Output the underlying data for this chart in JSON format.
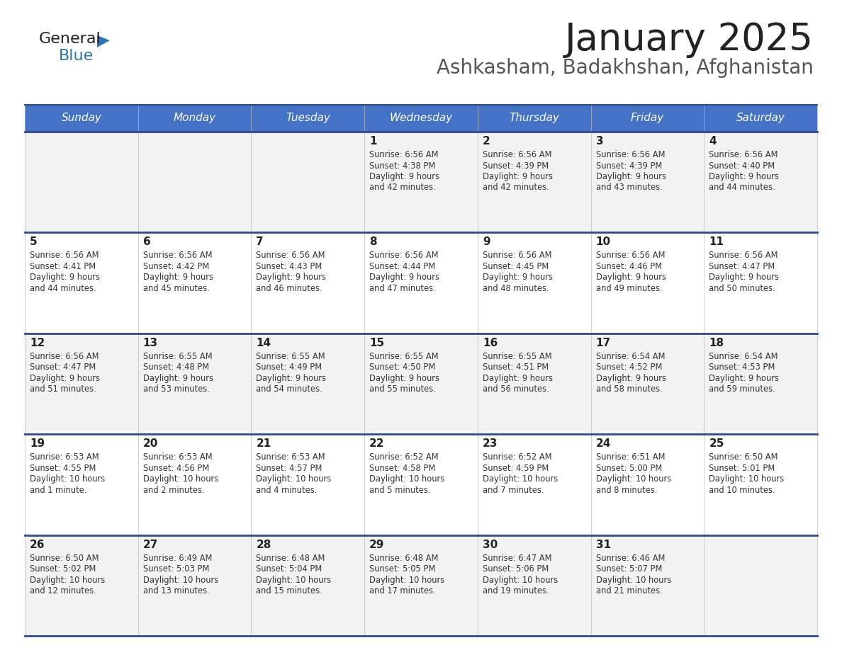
{
  "title": "January 2025",
  "subtitle": "Ashkasham, Badakhshan, Afghanistan",
  "header_bg": "#4472C4",
  "header_text_color": "#FFFFFF",
  "cell_bg_light": "#F2F2F2",
  "cell_bg_white": "#FFFFFF",
  "divider_color": "#2E4A8B",
  "days_of_week": [
    "Sunday",
    "Monday",
    "Tuesday",
    "Wednesday",
    "Thursday",
    "Friday",
    "Saturday"
  ],
  "calendar": [
    [
      {
        "day": "",
        "sunrise": "",
        "sunset": "",
        "daylight": ""
      },
      {
        "day": "",
        "sunrise": "",
        "sunset": "",
        "daylight": ""
      },
      {
        "day": "",
        "sunrise": "",
        "sunset": "",
        "daylight": ""
      },
      {
        "day": "1",
        "sunrise": "6:56 AM",
        "sunset": "4:38 PM",
        "daylight": "9 hours and 42 minutes."
      },
      {
        "day": "2",
        "sunrise": "6:56 AM",
        "sunset": "4:39 PM",
        "daylight": "9 hours and 42 minutes."
      },
      {
        "day": "3",
        "sunrise": "6:56 AM",
        "sunset": "4:39 PM",
        "daylight": "9 hours and 43 minutes."
      },
      {
        "day": "4",
        "sunrise": "6:56 AM",
        "sunset": "4:40 PM",
        "daylight": "9 hours and 44 minutes."
      }
    ],
    [
      {
        "day": "5",
        "sunrise": "6:56 AM",
        "sunset": "4:41 PM",
        "daylight": "9 hours and 44 minutes."
      },
      {
        "day": "6",
        "sunrise": "6:56 AM",
        "sunset": "4:42 PM",
        "daylight": "9 hours and 45 minutes."
      },
      {
        "day": "7",
        "sunrise": "6:56 AM",
        "sunset": "4:43 PM",
        "daylight": "9 hours and 46 minutes."
      },
      {
        "day": "8",
        "sunrise": "6:56 AM",
        "sunset": "4:44 PM",
        "daylight": "9 hours and 47 minutes."
      },
      {
        "day": "9",
        "sunrise": "6:56 AM",
        "sunset": "4:45 PM",
        "daylight": "9 hours and 48 minutes."
      },
      {
        "day": "10",
        "sunrise": "6:56 AM",
        "sunset": "4:46 PM",
        "daylight": "9 hours and 49 minutes."
      },
      {
        "day": "11",
        "sunrise": "6:56 AM",
        "sunset": "4:47 PM",
        "daylight": "9 hours and 50 minutes."
      }
    ],
    [
      {
        "day": "12",
        "sunrise": "6:56 AM",
        "sunset": "4:47 PM",
        "daylight": "9 hours and 51 minutes."
      },
      {
        "day": "13",
        "sunrise": "6:55 AM",
        "sunset": "4:48 PM",
        "daylight": "9 hours and 53 minutes."
      },
      {
        "day": "14",
        "sunrise": "6:55 AM",
        "sunset": "4:49 PM",
        "daylight": "9 hours and 54 minutes."
      },
      {
        "day": "15",
        "sunrise": "6:55 AM",
        "sunset": "4:50 PM",
        "daylight": "9 hours and 55 minutes."
      },
      {
        "day": "16",
        "sunrise": "6:55 AM",
        "sunset": "4:51 PM",
        "daylight": "9 hours and 56 minutes."
      },
      {
        "day": "17",
        "sunrise": "6:54 AM",
        "sunset": "4:52 PM",
        "daylight": "9 hours and 58 minutes."
      },
      {
        "day": "18",
        "sunrise": "6:54 AM",
        "sunset": "4:53 PM",
        "daylight": "9 hours and 59 minutes."
      }
    ],
    [
      {
        "day": "19",
        "sunrise": "6:53 AM",
        "sunset": "4:55 PM",
        "daylight": "10 hours and 1 minute."
      },
      {
        "day": "20",
        "sunrise": "6:53 AM",
        "sunset": "4:56 PM",
        "daylight": "10 hours and 2 minutes."
      },
      {
        "day": "21",
        "sunrise": "6:53 AM",
        "sunset": "4:57 PM",
        "daylight": "10 hours and 4 minutes."
      },
      {
        "day": "22",
        "sunrise": "6:52 AM",
        "sunset": "4:58 PM",
        "daylight": "10 hours and 5 minutes."
      },
      {
        "day": "23",
        "sunrise": "6:52 AM",
        "sunset": "4:59 PM",
        "daylight": "10 hours and 7 minutes."
      },
      {
        "day": "24",
        "sunrise": "6:51 AM",
        "sunset": "5:00 PM",
        "daylight": "10 hours and 8 minutes."
      },
      {
        "day": "25",
        "sunrise": "6:50 AM",
        "sunset": "5:01 PM",
        "daylight": "10 hours and 10 minutes."
      }
    ],
    [
      {
        "day": "26",
        "sunrise": "6:50 AM",
        "sunset": "5:02 PM",
        "daylight": "10 hours and 12 minutes."
      },
      {
        "day": "27",
        "sunrise": "6:49 AM",
        "sunset": "5:03 PM",
        "daylight": "10 hours and 13 minutes."
      },
      {
        "day": "28",
        "sunrise": "6:48 AM",
        "sunset": "5:04 PM",
        "daylight": "10 hours and 15 minutes."
      },
      {
        "day": "29",
        "sunrise": "6:48 AM",
        "sunset": "5:05 PM",
        "daylight": "10 hours and 17 minutes."
      },
      {
        "day": "30",
        "sunrise": "6:47 AM",
        "sunset": "5:06 PM",
        "daylight": "10 hours and 19 minutes."
      },
      {
        "day": "31",
        "sunrise": "6:46 AM",
        "sunset": "5:07 PM",
        "daylight": "10 hours and 21 minutes."
      },
      {
        "day": "",
        "sunrise": "",
        "sunset": "",
        "daylight": ""
      }
    ]
  ]
}
